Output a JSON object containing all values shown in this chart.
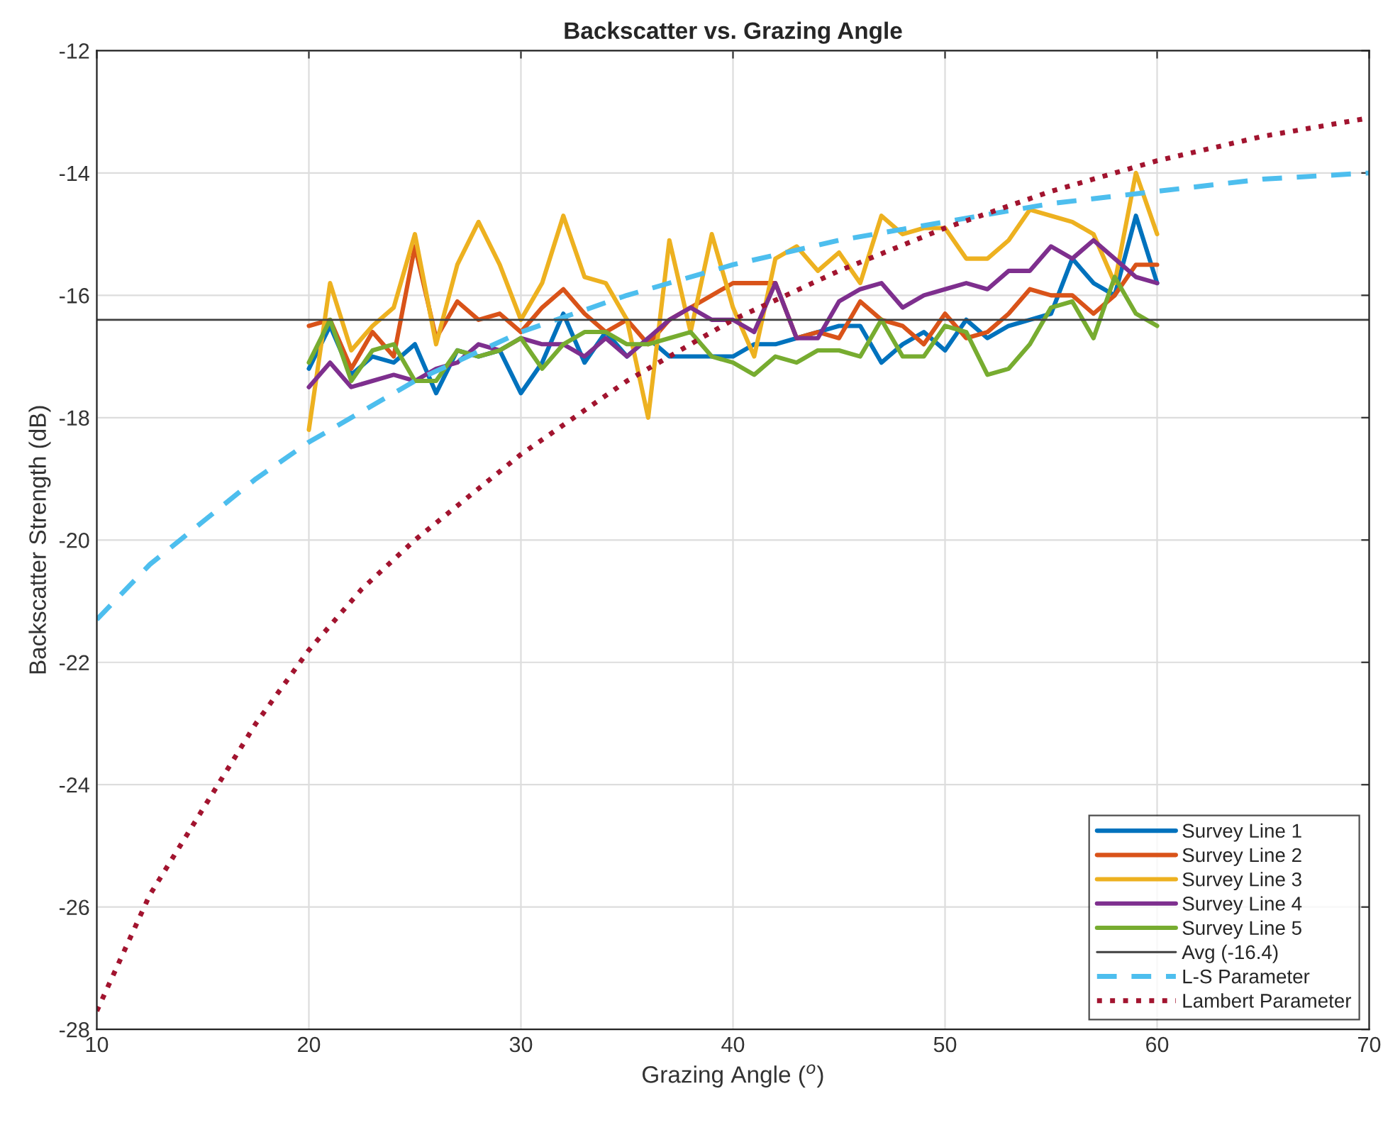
{
  "chart_data": {
    "type": "line",
    "title": "Backscatter vs. Grazing Angle",
    "xlabel": "Grazing Angle ($^{o}$)",
    "ylabel": "Backscatter Strength (dB)",
    "xlim": [
      10,
      70
    ],
    "xticks": [
      10,
      20,
      30,
      40,
      50,
      60,
      70
    ],
    "ylim": [
      -28,
      -12
    ],
    "yticks": [
      -28,
      -26,
      -24,
      -22,
      -20,
      -18,
      -16,
      -14,
      -12
    ],
    "grid": true,
    "legend": "bottom right",
    "line_style": "solid",
    "marker": "none",
    "series": [
      {
        "name": "Survey Line 1",
        "color": "#0072bd",
        "x": [
          20,
          21,
          22,
          23,
          24,
          25,
          26,
          27,
          28,
          29,
          30,
          31,
          32,
          33,
          34,
          35,
          36,
          37,
          38,
          39,
          40,
          41,
          42,
          43,
          44,
          45,
          46,
          47,
          48,
          49,
          50,
          51,
          52,
          53,
          54,
          55,
          56,
          57,
          58,
          59,
          60
        ],
        "values": [
          -17.2,
          -16.5,
          -17.3,
          -17.0,
          -17.1,
          -16.8,
          -17.6,
          -16.9,
          -17.0,
          -16.9,
          -17.6,
          -17.1,
          -16.3,
          -17.1,
          -16.6,
          -17.0,
          -16.7,
          -17.0,
          -17.0,
          -17.0,
          -17.0,
          -16.8,
          -16.8,
          -16.7,
          -16.6,
          -16.5,
          -16.5,
          -17.1,
          -16.8,
          -16.6,
          -16.9,
          -16.4,
          -16.7,
          -16.5,
          -16.4,
          -16.3,
          -15.4,
          -15.8,
          -16.0,
          -14.7,
          -15.8
        ]
      },
      {
        "name": "Survey Line 2",
        "color": "#d95319",
        "x": [
          20,
          21,
          22,
          23,
          24,
          25,
          26,
          27,
          28,
          29,
          30,
          31,
          32,
          33,
          34,
          35,
          36,
          37,
          38,
          39,
          40,
          41,
          42,
          43,
          44,
          45,
          46,
          47,
          48,
          49,
          50,
          51,
          52,
          53,
          54,
          55,
          56,
          57,
          58,
          59,
          60
        ],
        "values": [
          -16.5,
          -16.4,
          -17.2,
          -16.6,
          -17.0,
          -15.2,
          -16.7,
          -16.1,
          -16.4,
          -16.3,
          -16.6,
          -16.2,
          -15.9,
          -16.3,
          -16.6,
          -16.4,
          -16.8,
          -16.4,
          -16.2,
          -16.0,
          -15.8,
          -15.8,
          -15.8,
          -16.7,
          -16.6,
          -16.7,
          -16.1,
          -16.4,
          -16.5,
          -16.8,
          -16.3,
          -16.7,
          -16.6,
          -16.3,
          -15.9,
          -16.0,
          -16.0,
          -16.3,
          -16.0,
          -15.5,
          -15.5
        ]
      },
      {
        "name": "Survey Line 3",
        "color": "#edb120",
        "x": [
          20,
          21,
          22,
          23,
          24,
          25,
          26,
          27,
          28,
          29,
          30,
          31,
          32,
          33,
          34,
          35,
          36,
          37,
          38,
          39,
          40,
          41,
          42,
          43,
          44,
          45,
          46,
          47,
          48,
          49,
          50,
          51,
          52,
          53,
          54,
          55,
          56,
          57,
          58,
          59,
          60
        ],
        "values": [
          -18.2,
          -15.8,
          -16.9,
          -16.5,
          -16.2,
          -15.0,
          -16.8,
          -15.5,
          -14.8,
          -15.5,
          -16.4,
          -15.8,
          -14.7,
          -15.7,
          -15.8,
          -16.4,
          -18.0,
          -15.1,
          -16.6,
          -15.0,
          -16.2,
          -17.0,
          -15.4,
          -15.2,
          -15.6,
          -15.3,
          -15.8,
          -14.7,
          -15.0,
          -14.9,
          -14.9,
          -15.4,
          -15.4,
          -15.1,
          -14.6,
          -14.7,
          -14.8,
          -15.0,
          -15.8,
          -14.0,
          -15.0
        ]
      },
      {
        "name": "Survey Line 4",
        "color": "#7e2f8e",
        "x": [
          20,
          21,
          22,
          23,
          24,
          25,
          26,
          27,
          28,
          29,
          30,
          31,
          32,
          33,
          34,
          35,
          36,
          37,
          38,
          39,
          40,
          41,
          42,
          43,
          44,
          45,
          46,
          47,
          48,
          49,
          50,
          51,
          52,
          53,
          54,
          55,
          56,
          57,
          58,
          59,
          60
        ],
        "values": [
          -17.5,
          -17.1,
          -17.5,
          -17.4,
          -17.3,
          -17.4,
          -17.2,
          -17.1,
          -16.8,
          -16.9,
          -16.7,
          -16.8,
          -16.8,
          -17.0,
          -16.7,
          -17.0,
          -16.7,
          -16.4,
          -16.2,
          -16.4,
          -16.4,
          -16.6,
          -15.8,
          -16.7,
          -16.7,
          -16.1,
          -15.9,
          -15.8,
          -16.2,
          -16.0,
          -15.9,
          -15.8,
          -15.9,
          -15.6,
          -15.6,
          -15.2,
          -15.4,
          -15.1,
          -15.4,
          -15.7,
          -15.8
        ]
      },
      {
        "name": "Survey Line 5",
        "color": "#77ac30",
        "x": [
          20,
          21,
          22,
          23,
          24,
          25,
          26,
          27,
          28,
          29,
          30,
          31,
          32,
          33,
          34,
          35,
          36,
          37,
          38,
          39,
          40,
          41,
          42,
          43,
          44,
          45,
          46,
          47,
          48,
          49,
          50,
          51,
          52,
          53,
          54,
          55,
          56,
          57,
          58,
          59,
          60
        ],
        "values": [
          -17.1,
          -16.4,
          -17.4,
          -16.9,
          -16.8,
          -17.4,
          -17.4,
          -16.9,
          -17.0,
          -16.9,
          -16.7,
          -17.2,
          -16.8,
          -16.6,
          -16.6,
          -16.8,
          -16.8,
          -16.7,
          -16.6,
          -17.0,
          -17.1,
          -17.3,
          -17.0,
          -17.1,
          -16.9,
          -16.9,
          -17.0,
          -16.4,
          -17.0,
          -17.0,
          -16.5,
          -16.6,
          -17.3,
          -17.2,
          -16.8,
          -16.2,
          -16.1,
          -16.7,
          -15.7,
          -16.3,
          -16.5
        ]
      },
      {
        "name": "L-S Parameter",
        "color": "#4dbeee",
        "line_style": "dashed",
        "x": [
          10,
          12.5,
          15,
          17.5,
          20,
          25,
          30,
          35,
          40,
          45,
          50,
          55,
          60,
          65,
          70
        ],
        "values": [
          -21.3,
          -20.4,
          -19.7,
          -19.0,
          -18.4,
          -17.4,
          -16.6,
          -16.0,
          -15.5,
          -15.1,
          -14.8,
          -14.5,
          -14.3,
          -14.1,
          -14.0
        ]
      },
      {
        "name": "Lambert Parameter",
        "color": "#a2142f",
        "line_style": "dotted",
        "x": [
          10,
          12.5,
          15,
          17.5,
          20,
          22.5,
          25,
          30,
          35,
          40,
          45,
          50,
          55,
          60,
          65,
          70
        ],
        "values": [
          -27.7,
          -25.8,
          -24.4,
          -23.0,
          -21.8,
          -20.8,
          -20.0,
          -18.6,
          -17.4,
          -16.4,
          -15.6,
          -14.9,
          -14.3,
          -13.8,
          -13.4,
          -13.1
        ]
      }
    ],
    "ref_lines": [
      {
        "axis": "y",
        "value": -16.4,
        "label": "Avg (-16.4)",
        "color": "#404040",
        "line_style": "solid"
      }
    ]
  }
}
